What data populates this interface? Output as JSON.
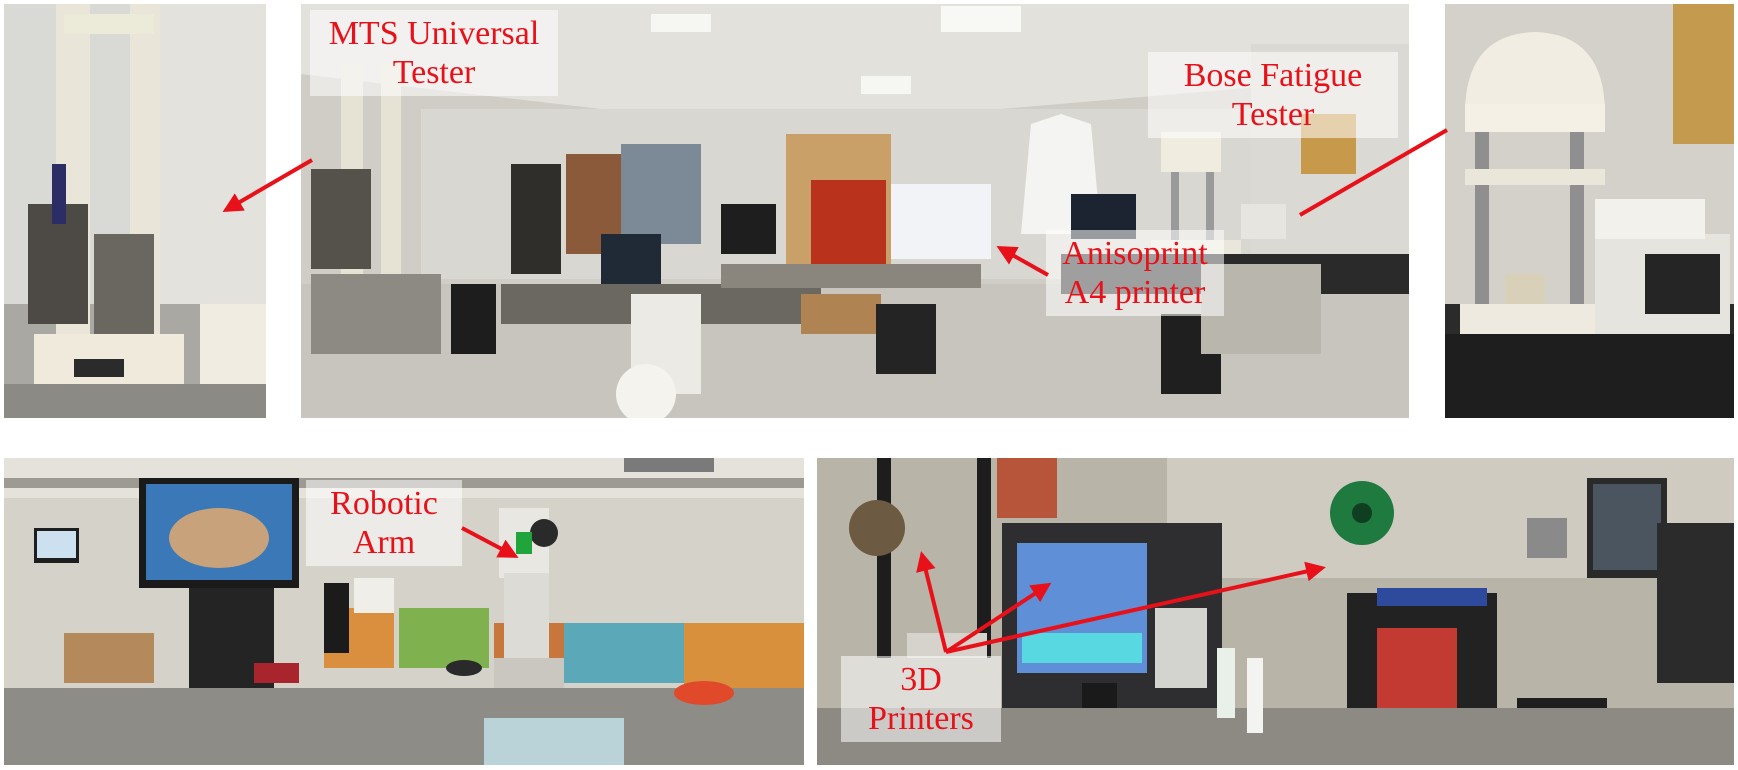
{
  "labels": {
    "mts": "MTS Universal Tester",
    "bose": "Bose Fatigue Tester",
    "anisoprint": "Anisoprint A4 printer",
    "robotic_arm": "Robotic Arm",
    "printers_3d": "3D Printers"
  },
  "colors": {
    "label_text": "#e8111a",
    "arrow": "#e8111a"
  }
}
